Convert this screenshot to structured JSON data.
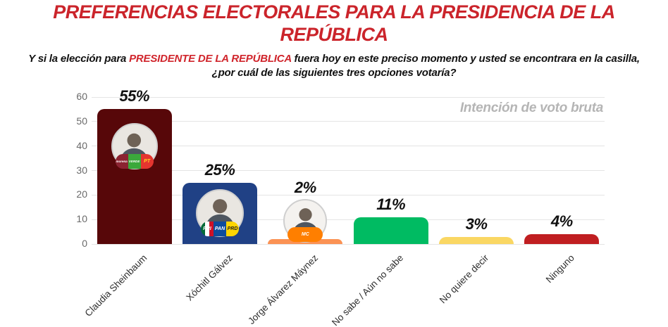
{
  "page": {
    "title": "PREFERENCIAS ELECTORALES PARA LA PRESIDENCIA DE LA REPÚBLICA",
    "question": {
      "prefix": "Y si la elección para ",
      "highlight": "PRESIDENTE DE LA REPÚBLICA",
      "suffix": " fuera hoy en este preciso momento y usted se encontrara en la casilla, ¿por cuál de las siguientes tres opciones votaría?"
    },
    "watermark": "Intención de voto bruta"
  },
  "chart_data": {
    "type": "bar",
    "categories": [
      "Claudia Sheinbaum",
      "Xóchitl Gálvez",
      "Jorge Álvarez Máynez",
      "No sabe / Aún no sabe",
      "No quiere decir",
      "Ninguno"
    ],
    "values": [
      55,
      25,
      2,
      11,
      3,
      4
    ],
    "value_labels": [
      "55%",
      "25%",
      "2%",
      "11%",
      "3%",
      "4%"
    ],
    "bar_colors": [
      "#570709",
      "#204185",
      "#FB9254",
      "#00BB62",
      "#FAD763",
      "#C01E21"
    ],
    "title": "",
    "xlabel": "",
    "ylabel": "",
    "ylim": [
      0,
      60
    ],
    "yticks": [
      0,
      10,
      20,
      30,
      40,
      50,
      60
    ],
    "grid": true,
    "legend_position": "none",
    "annotation": "Intención de voto bruta"
  },
  "avatars": [
    {
      "candidate": "Claudia Sheinbaum",
      "bar_index": 0,
      "parties": [
        {
          "abbr": "morena",
          "color": "#8B2331",
          "text_color": "#FFFFFF"
        },
        {
          "abbr": "VERDE",
          "color": "#3BA83B",
          "text_color": "#FFFFFF"
        },
        {
          "abbr": "PT",
          "color": "#E5352F",
          "text_color": "#FFD520"
        }
      ]
    },
    {
      "candidate": "Xóchitl Gálvez",
      "bar_index": 1,
      "parties": [
        {
          "abbr": "PRI",
          "color": "tricolor",
          "text_color": "#FFFFFF"
        },
        {
          "abbr": "PAN",
          "color": "#0E4C9C",
          "text_color": "#FFFFFF"
        },
        {
          "abbr": "PRD",
          "color": "#FFD500",
          "text_color": "#222222"
        }
      ]
    },
    {
      "candidate": "Jorge Álvarez Máynez",
      "bar_index": 2,
      "parties": [
        {
          "abbr": "MC",
          "color": "#FF7F00",
          "text_color": "#FFFFFF"
        }
      ]
    }
  ],
  "colors": {
    "title_red": "#CB242B",
    "highlight_red": "#D0242B",
    "text_black": "#111111",
    "watermark_gray": "#B5B5B5",
    "grid_gray": "#E4E4E4",
    "tick_gray": "#6A6A6A",
    "xlabel_dark": "#2E2E2E"
  }
}
